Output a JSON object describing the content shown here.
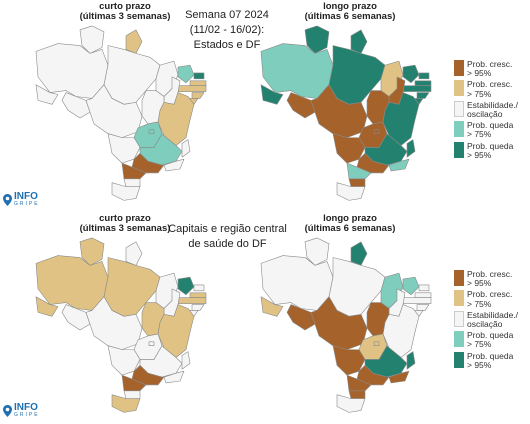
{
  "colors": {
    "prob_cresc_95": "#a5622b",
    "prob_cresc_75": "#e0c384",
    "estabilidade": "#f5f5f5",
    "prob_queda_75": "#7fcdbd",
    "prob_queda_95": "#23826f"
  },
  "top": {
    "left_caption": "curto prazo\n(últimas 3 semanas)",
    "right_caption": "longo prazo\n(últimas 6 semanas)",
    "center_title": "Semana 07 2024\n(11/02 - 16/02):\nEstados e DF"
  },
  "bottom": {
    "left_caption": "curto prazo\n(últimas 3 semanas)",
    "right_caption": "longo prazo\n(últimas 6 semanas)",
    "center_title": "Capitais e região central\nde saúde do DF"
  },
  "legend": [
    {
      "key": "prob_cresc_95",
      "label": "Prob. cresc.\n> 95%"
    },
    {
      "key": "prob_cresc_75",
      "label": "Prob. cresc.\n> 75%"
    },
    {
      "key": "estabilidade",
      "label": "Estabilidade./\noscilação"
    },
    {
      "key": "prob_queda_75",
      "label": "Prob. queda\n> 75%"
    },
    {
      "key": "prob_queda_95",
      "label": "Prob. queda\n> 95%"
    }
  ],
  "logo": {
    "text": "INFO",
    "sub": "GRIPE"
  },
  "maps": {
    "top_short": {
      "RR": "estabilidade",
      "AP": "prob_cresc_75",
      "AM": "estabilidade",
      "PA": "estabilidade",
      "MA": "estabilidade",
      "CE": "prob_queda_75",
      "RN": "prob_queda_95",
      "PB": "prob_cresc_75",
      "PE": "prob_cresc_75",
      "AL": "prob_cresc_75",
      "SE": "prob_cresc_75",
      "BA": "prob_cresc_75",
      "PI": "estabilidade",
      "TO": "estabilidade",
      "AC": "estabilidade",
      "RO": "estabilidade",
      "MT": "estabilidade",
      "GO": "prob_queda_75",
      "DF": "prob_queda_75",
      "MS": "estabilidade",
      "MG": "prob_queda_75",
      "ES": "estabilidade",
      "RJ": "estabilidade",
      "SP": "prob_cresc_95",
      "PR": "prob_cresc_95",
      "SC": "estabilidade",
      "RS": "estabilidade"
    },
    "top_long": {
      "RR": "prob_queda_95",
      "AP": "prob_queda_95",
      "AM": "prob_queda_75",
      "PA": "prob_queda_95",
      "MA": "prob_cresc_75",
      "CE": "prob_queda_95",
      "RN": "prob_queda_95",
      "PB": "prob_queda_95",
      "PE": "prob_queda_95",
      "AL": "prob_queda_95",
      "SE": "prob_queda_95",
      "BA": "prob_queda_95",
      "PI": "prob_cresc_95",
      "TO": "prob_cresc_95",
      "AC": "prob_queda_95",
      "RO": "prob_cresc_95",
      "MT": "prob_cresc_95",
      "GO": "prob_cresc_95",
      "DF": "prob_cresc_95",
      "MS": "prob_cresc_95",
      "MG": "prob_queda_95",
      "ES": "prob_queda_95",
      "RJ": "prob_queda_75",
      "SP": "prob_cresc_95",
      "PR": "prob_queda_75",
      "SC": "prob_cresc_95",
      "RS": "estabilidade"
    },
    "bottom_short": {
      "RR": "prob_cresc_75",
      "AP": "estabilidade",
      "AM": "prob_cresc_75",
      "PA": "prob_cresc_75",
      "MA": "estabilidade",
      "CE": "prob_queda_95",
      "RN": "estabilidade",
      "PB": "prob_cresc_75",
      "PE": "prob_cresc_75",
      "AL": "estabilidade",
      "SE": "estabilidade",
      "BA": "prob_cresc_75",
      "PI": "estabilidade",
      "TO": "prob_cresc_75",
      "AC": "prob_cresc_75",
      "RO": "estabilidade",
      "MT": "estabilidade",
      "GO": "estabilidade",
      "DF": "estabilidade",
      "MS": "estabilidade",
      "MG": "estabilidade",
      "ES": "estabilidade",
      "RJ": "estabilidade",
      "SP": "prob_cresc_95",
      "PR": "prob_cresc_95",
      "SC": "estabilidade",
      "RS": "prob_cresc_75"
    },
    "bottom_long": {
      "RR": "estabilidade",
      "AP": "prob_queda_95",
      "AM": "estabilidade",
      "PA": "estabilidade",
      "MA": "prob_queda_75",
      "CE": "prob_queda_75",
      "RN": "estabilidade",
      "PB": "estabilidade",
      "PE": "estabilidade",
      "AL": "estabilidade",
      "SE": "estabilidade",
      "BA": "estabilidade",
      "PI": "estabilidade",
      "TO": "prob_cresc_95",
      "AC": "prob_cresc_75",
      "RO": "prob_cresc_95",
      "MT": "prob_cresc_95",
      "GO": "prob_cresc_75",
      "DF": "prob_cresc_75",
      "MS": "prob_cresc_95",
      "MG": "prob_queda_95",
      "ES": "prob_queda_95",
      "RJ": "prob_cresc_95",
      "SP": "prob_cresc_95",
      "PR": "prob_cresc_95",
      "SC": "prob_cresc_95",
      "RS": "estabilidade"
    }
  }
}
